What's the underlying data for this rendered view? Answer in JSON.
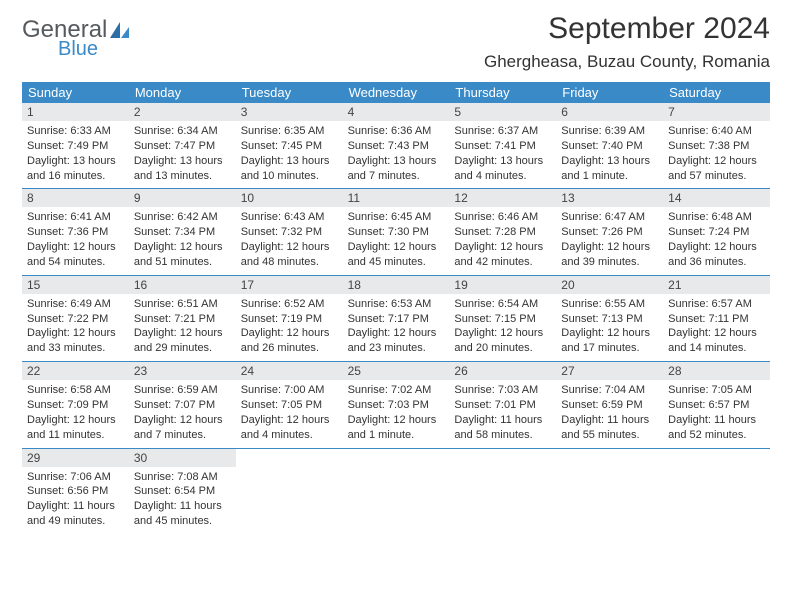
{
  "logo": {
    "line1": "General",
    "line2": "Blue"
  },
  "title": "September 2024",
  "location": "Ghergheasa, Buzau County, Romania",
  "colors": {
    "header_bg": "#3a8ac8",
    "header_text": "#ffffff",
    "daynum_bg": "#e8e9ea",
    "row_divider": "#3a8ac8",
    "body_text": "#333333"
  },
  "weekdays": [
    "Sunday",
    "Monday",
    "Tuesday",
    "Wednesday",
    "Thursday",
    "Friday",
    "Saturday"
  ],
  "weeks": [
    [
      {
        "n": "1",
        "sr": "6:33 AM",
        "ss": "7:49 PM",
        "dl": "13 hours and 16 minutes."
      },
      {
        "n": "2",
        "sr": "6:34 AM",
        "ss": "7:47 PM",
        "dl": "13 hours and 13 minutes."
      },
      {
        "n": "3",
        "sr": "6:35 AM",
        "ss": "7:45 PM",
        "dl": "13 hours and 10 minutes."
      },
      {
        "n": "4",
        "sr": "6:36 AM",
        "ss": "7:43 PM",
        "dl": "13 hours and 7 minutes."
      },
      {
        "n": "5",
        "sr": "6:37 AM",
        "ss": "7:41 PM",
        "dl": "13 hours and 4 minutes."
      },
      {
        "n": "6",
        "sr": "6:39 AM",
        "ss": "7:40 PM",
        "dl": "13 hours and 1 minute."
      },
      {
        "n": "7",
        "sr": "6:40 AM",
        "ss": "7:38 PM",
        "dl": "12 hours and 57 minutes."
      }
    ],
    [
      {
        "n": "8",
        "sr": "6:41 AM",
        "ss": "7:36 PM",
        "dl": "12 hours and 54 minutes."
      },
      {
        "n": "9",
        "sr": "6:42 AM",
        "ss": "7:34 PM",
        "dl": "12 hours and 51 minutes."
      },
      {
        "n": "10",
        "sr": "6:43 AM",
        "ss": "7:32 PM",
        "dl": "12 hours and 48 minutes."
      },
      {
        "n": "11",
        "sr": "6:45 AM",
        "ss": "7:30 PM",
        "dl": "12 hours and 45 minutes."
      },
      {
        "n": "12",
        "sr": "6:46 AM",
        "ss": "7:28 PM",
        "dl": "12 hours and 42 minutes."
      },
      {
        "n": "13",
        "sr": "6:47 AM",
        "ss": "7:26 PM",
        "dl": "12 hours and 39 minutes."
      },
      {
        "n": "14",
        "sr": "6:48 AM",
        "ss": "7:24 PM",
        "dl": "12 hours and 36 minutes."
      }
    ],
    [
      {
        "n": "15",
        "sr": "6:49 AM",
        "ss": "7:22 PM",
        "dl": "12 hours and 33 minutes."
      },
      {
        "n": "16",
        "sr": "6:51 AM",
        "ss": "7:21 PM",
        "dl": "12 hours and 29 minutes."
      },
      {
        "n": "17",
        "sr": "6:52 AM",
        "ss": "7:19 PM",
        "dl": "12 hours and 26 minutes."
      },
      {
        "n": "18",
        "sr": "6:53 AM",
        "ss": "7:17 PM",
        "dl": "12 hours and 23 minutes."
      },
      {
        "n": "19",
        "sr": "6:54 AM",
        "ss": "7:15 PM",
        "dl": "12 hours and 20 minutes."
      },
      {
        "n": "20",
        "sr": "6:55 AM",
        "ss": "7:13 PM",
        "dl": "12 hours and 17 minutes."
      },
      {
        "n": "21",
        "sr": "6:57 AM",
        "ss": "7:11 PM",
        "dl": "12 hours and 14 minutes."
      }
    ],
    [
      {
        "n": "22",
        "sr": "6:58 AM",
        "ss": "7:09 PM",
        "dl": "12 hours and 11 minutes."
      },
      {
        "n": "23",
        "sr": "6:59 AM",
        "ss": "7:07 PM",
        "dl": "12 hours and 7 minutes."
      },
      {
        "n": "24",
        "sr": "7:00 AM",
        "ss": "7:05 PM",
        "dl": "12 hours and 4 minutes."
      },
      {
        "n": "25",
        "sr": "7:02 AM",
        "ss": "7:03 PM",
        "dl": "12 hours and 1 minute."
      },
      {
        "n": "26",
        "sr": "7:03 AM",
        "ss": "7:01 PM",
        "dl": "11 hours and 58 minutes."
      },
      {
        "n": "27",
        "sr": "7:04 AM",
        "ss": "6:59 PM",
        "dl": "11 hours and 55 minutes."
      },
      {
        "n": "28",
        "sr": "7:05 AM",
        "ss": "6:57 PM",
        "dl": "11 hours and 52 minutes."
      }
    ],
    [
      {
        "n": "29",
        "sr": "7:06 AM",
        "ss": "6:56 PM",
        "dl": "11 hours and 49 minutes."
      },
      {
        "n": "30",
        "sr": "7:08 AM",
        "ss": "6:54 PM",
        "dl": "11 hours and 45 minutes."
      },
      null,
      null,
      null,
      null,
      null
    ]
  ],
  "labels": {
    "sunrise": "Sunrise: ",
    "sunset": "Sunset: ",
    "daylight": "Daylight: "
  }
}
